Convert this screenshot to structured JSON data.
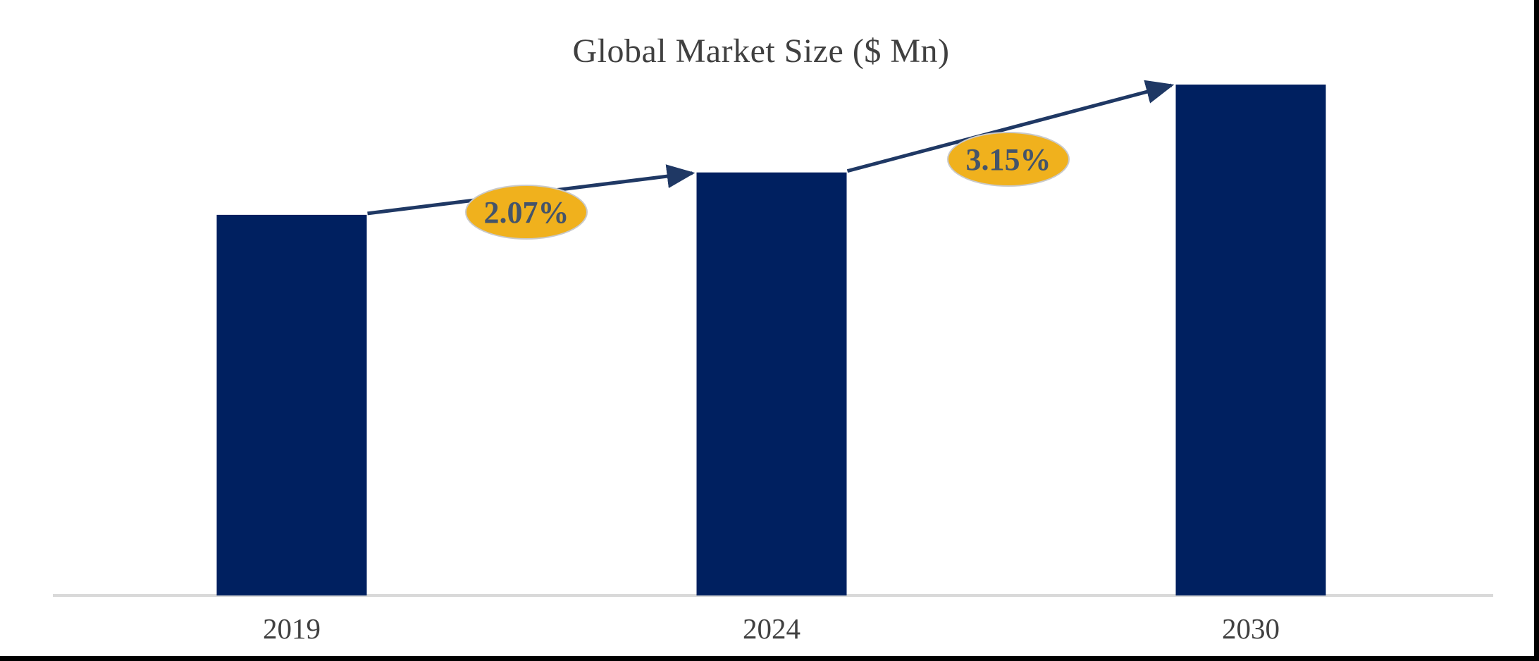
{
  "window": {
    "background": "#FFFFFF",
    "edge_border_color": "#000000"
  },
  "chart_data": {
    "type": "bar",
    "title": "Global Market Size ($ Mn)",
    "categories": [
      "2019",
      "2024",
      "2030"
    ],
    "relative_bar_heights": [
      0.745,
      0.828,
      1.0
    ],
    "value_labels_shown": false,
    "annotations": [
      {
        "label": "2.07%",
        "from_category": "2019",
        "to_category": "2024",
        "shape": "gold-ellipse-on-arrow"
      },
      {
        "label": "3.15%",
        "from_category": "2024",
        "to_category": "2030",
        "shape": "gold-ellipse-on-arrow"
      }
    ],
    "xlabel": "",
    "ylabel": "",
    "y_axis": "hidden",
    "gridlines": false,
    "legend": false,
    "colors": {
      "bar": "#002060",
      "arrow": "#1F3864",
      "badge_fill": "#F0B11D",
      "badge_stroke": "#C9C9C9",
      "badge_text": "#44546A",
      "axis_line": "#D9D9D9",
      "text": "#404040"
    }
  }
}
